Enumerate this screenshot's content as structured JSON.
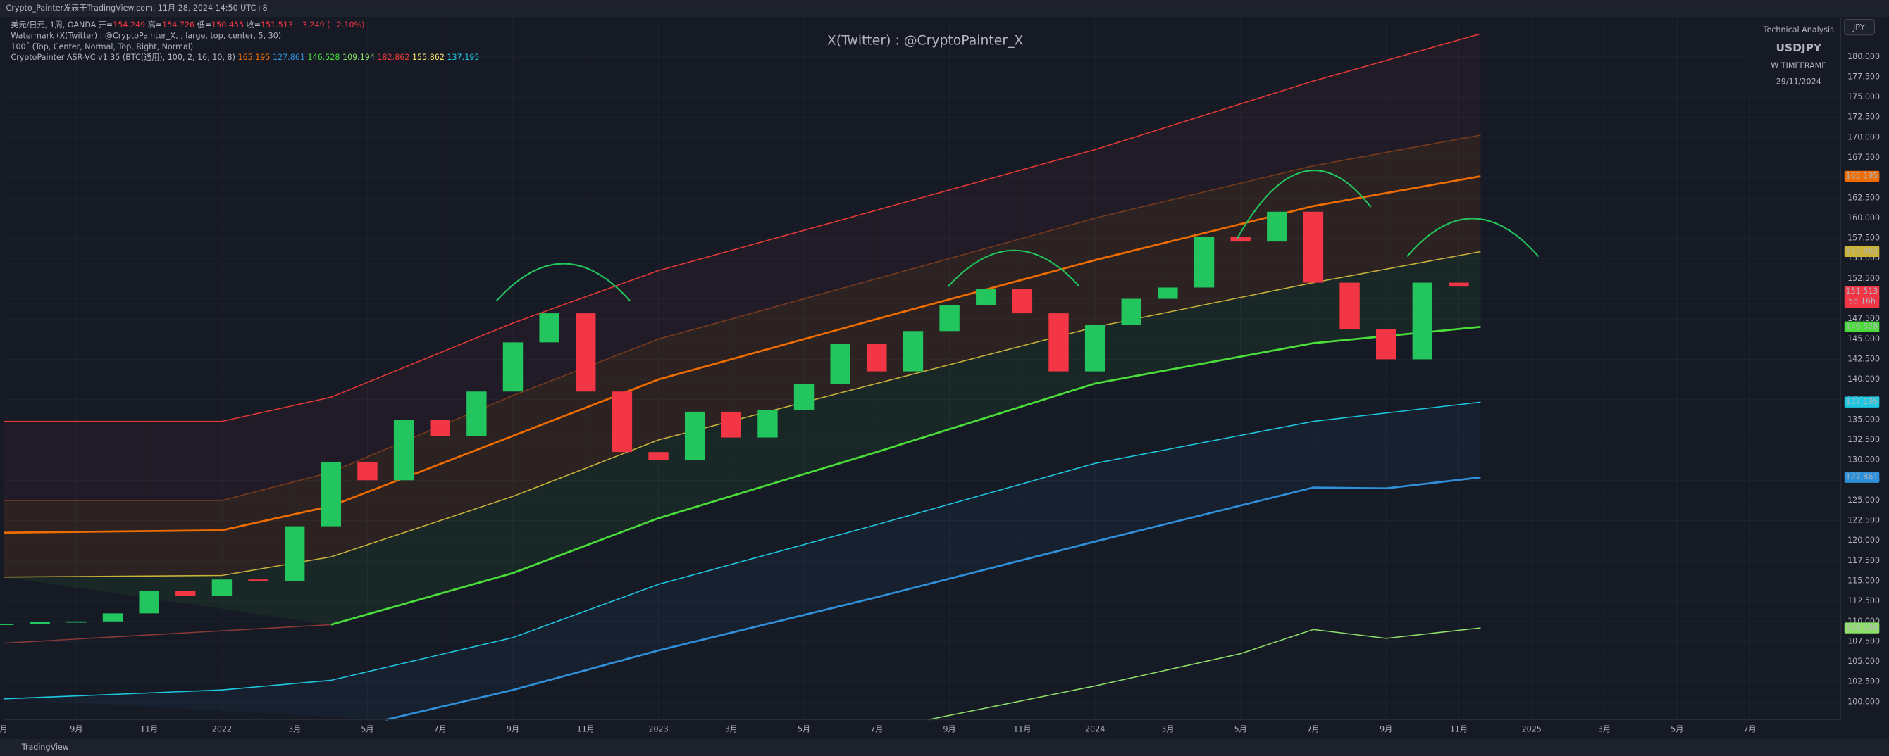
{
  "top_bar": "Crypto_Painter发表于TradingView.com, 11月 28, 2024 14:50 UTC+8",
  "legend": {
    "symbol": "美元/日元, 1周, OANDA",
    "ohlc": [
      {
        "label": "开=",
        "value": 154.249
      },
      {
        "label": "高=",
        "value": 154.726
      },
      {
        "label": "低=",
        "value": 150.455
      },
      {
        "label": "收=",
        "value": 151.513
      }
    ],
    "change": "−3.249 (−2.10%)",
    "watermark": "Watermark (X(Twitter) : @CryptoPainter_X, , large, top, center, 5, 30)",
    "info": "100˚ (Top, Center, Normal, Top, Right, Normal)",
    "indicator": "CryptoPainter ASR-VC v1.35 (BTC(通用), 100, 2, 16, 10, 8)"
  },
  "watermark_text": "X(Twitter) : @CryptoPainter_X",
  "info_box": [
    "Technical Analysis",
    "USDJPY",
    "W TIMEFRAME",
    "29/11/2024"
  ],
  "currency": "JPY",
  "countdown": "5d 16h",
  "footer": "TradingView",
  "chart_data": {
    "type": "candlestick",
    "up_color": "#22c55e",
    "down_color": "#f23645",
    "grid": true,
    "x": [
      6,
      7,
      8,
      9,
      10,
      11,
      12,
      13,
      14,
      15,
      16,
      17,
      18,
      19,
      20,
      21,
      22,
      23,
      24,
      25,
      26,
      27,
      28,
      29,
      30,
      31,
      32,
      33,
      34,
      35,
      36,
      37,
      38,
      39,
      40,
      41,
      42,
      43,
      44,
      45,
      46
    ],
    "values": [
      109.7,
      109.9,
      110.0,
      111.0,
      113.8,
      113.2,
      115.2,
      115.0,
      121.8,
      129.8,
      127.5,
      135.0,
      133.0,
      138.5,
      144.6,
      148.2,
      138.5,
      131.0,
      130.0,
      136.0,
      132.8,
      136.2,
      139.4,
      144.4,
      141.0,
      146.0,
      149.2,
      151.2,
      148.2,
      141.0,
      146.8,
      150.0,
      151.4,
      157.7,
      157.1,
      160.8,
      152.0,
      146.2,
      142.5,
      152.0,
      151.513
    ],
    "series": [
      {
        "color": "#e53935",
        "x": [
          6,
          12,
          15,
          20,
          24,
          30,
          36,
          42,
          46.6
        ],
        "values": [
          134.8,
          134.8,
          137.8,
          147,
          153.5,
          161,
          168.5,
          177,
          182.862
        ]
      },
      {
        "color": "#7a3b1d",
        "x": [
          6,
          12,
          15,
          20,
          24,
          30,
          36,
          42,
          46.6
        ],
        "values": [
          125,
          125,
          128.5,
          138,
          145,
          152.5,
          160,
          166.5,
          170.3
        ]
      },
      {
        "color": "#ef6c00",
        "x": [
          6,
          12,
          15,
          20,
          24,
          30,
          36,
          42,
          46.6
        ],
        "values": [
          121,
          121.3,
          124.3,
          133,
          140,
          147.5,
          154.8,
          161.5,
          165.195
        ]
      },
      {
        "color": "#c9b23a",
        "x": [
          6,
          12,
          15,
          20,
          24,
          30,
          36,
          42,
          46.6
        ],
        "values": [
          115.5,
          115.7,
          118,
          125.5,
          132.5,
          139.5,
          146.5,
          152,
          155.862
        ]
      },
      {
        "color": "#4ade3a",
        "x": [
          15,
          20,
          24,
          30,
          36,
          42,
          46.6
        ],
        "values": [
          109.6,
          116,
          122.8,
          131,
          139.5,
          144.5,
          146.528
        ]
      },
      {
        "color": "#1ec8e0",
        "x": [
          6,
          12,
          15,
          20,
          24,
          30,
          36,
          42,
          46.6
        ],
        "values": [
          100.4,
          101.5,
          102.7,
          108,
          114.6,
          122,
          129.6,
          134.8,
          137.195
        ]
      },
      {
        "color": "#2f8fd8",
        "x": [
          16.5,
          20,
          24,
          30,
          36,
          42,
          44,
          46.6
        ],
        "values": [
          97.8,
          101.5,
          106.4,
          113,
          119.9,
          126.6,
          126.5,
          127.861
        ]
      },
      {
        "color": "#8ee06a",
        "x": [
          31.4,
          36,
          40,
          42,
          44,
          46.6
        ],
        "values": [
          97.8,
          102,
          106,
          109,
          107.9,
          109.194
        ]
      },
      {
        "color": "#8a3a36",
        "x": [
          6,
          15
        ],
        "values": [
          107.3,
          109.6
        ]
      }
    ],
    "xlim": [
      6,
      56.5
    ],
    "xticks": [
      {
        "value": 6,
        "label": "月"
      },
      {
        "value": 8,
        "label": "9月"
      },
      {
        "value": 10,
        "label": "11月"
      },
      {
        "value": 12,
        "label": "2022"
      },
      {
        "value": 14,
        "label": "3月"
      },
      {
        "value": 16,
        "label": "5月"
      },
      {
        "value": 18,
        "label": "7月"
      },
      {
        "value": 20,
        "label": "9月"
      },
      {
        "value": 22,
        "label": "11月"
      },
      {
        "value": 24,
        "label": "2023"
      },
      {
        "value": 26,
        "label": "3月"
      },
      {
        "value": 28,
        "label": "5月"
      },
      {
        "value": 30,
        "label": "7月"
      },
      {
        "value": 32,
        "label": "9月"
      },
      {
        "value": 34,
        "label": "11月"
      },
      {
        "value": 36,
        "label": "2024"
      },
      {
        "value": 38,
        "label": "3月"
      },
      {
        "value": 40,
        "label": "5月"
      },
      {
        "value": 42,
        "label": "7月"
      },
      {
        "value": 44,
        "label": "9月"
      },
      {
        "value": 46,
        "label": "11月"
      },
      {
        "value": 48,
        "label": "2025"
      },
      {
        "value": 50,
        "label": "3月"
      },
      {
        "value": 52,
        "label": "5月"
      },
      {
        "value": 54,
        "label": "7月"
      }
    ],
    "ylim": [
      97.8,
      184.8
    ],
    "yticks": [
      {
        "value": 100,
        "label": "100.000"
      },
      {
        "value": 102.5,
        "label": "102.500"
      },
      {
        "value": 105,
        "label": "105.000"
      },
      {
        "value": 107.5,
        "label": "107.500"
      },
      {
        "value": 110,
        "label": "110.000"
      },
      {
        "value": 112.5,
        "label": "112.500"
      },
      {
        "value": 115,
        "label": "115.000"
      },
      {
        "value": 117.5,
        "label": "117.500"
      },
      {
        "value": 120,
        "label": "120.000"
      },
      {
        "value": 122.5,
        "label": "122.500"
      },
      {
        "value": 125,
        "label": "125.000"
      },
      {
        "value": 127.5,
        "label": "127.500"
      },
      {
        "value": 130,
        "label": "130.000"
      },
      {
        "value": 132.5,
        "label": "132.500"
      },
      {
        "value": 135,
        "label": "135.000"
      },
      {
        "value": 137.5,
        "label": "137.500"
      },
      {
        "value": 140,
        "label": "140.000"
      },
      {
        "value": 142.5,
        "label": "142.500"
      },
      {
        "value": 145,
        "label": "145.000"
      },
      {
        "value": 147.5,
        "label": "147.500"
      },
      {
        "value": 150,
        "label": "150.000"
      },
      {
        "value": 152.5,
        "label": "152.500"
      },
      {
        "value": 155,
        "label": "155.000"
      },
      {
        "value": 157.5,
        "label": "157.500"
      },
      {
        "value": 160,
        "label": "160.000"
      },
      {
        "value": 162.5,
        "label": "162.500"
      },
      {
        "value": 165,
        "label": "165.000"
      },
      {
        "value": 167.5,
        "label": "167.500"
      },
      {
        "value": 170,
        "label": "170.000"
      },
      {
        "value": 172.5,
        "label": "172.500"
      },
      {
        "value": 175,
        "label": "175.000"
      },
      {
        "value": 177.5,
        "label": "177.500"
      },
      {
        "value": 180,
        "label": "180.000"
      }
    ]
  }
}
